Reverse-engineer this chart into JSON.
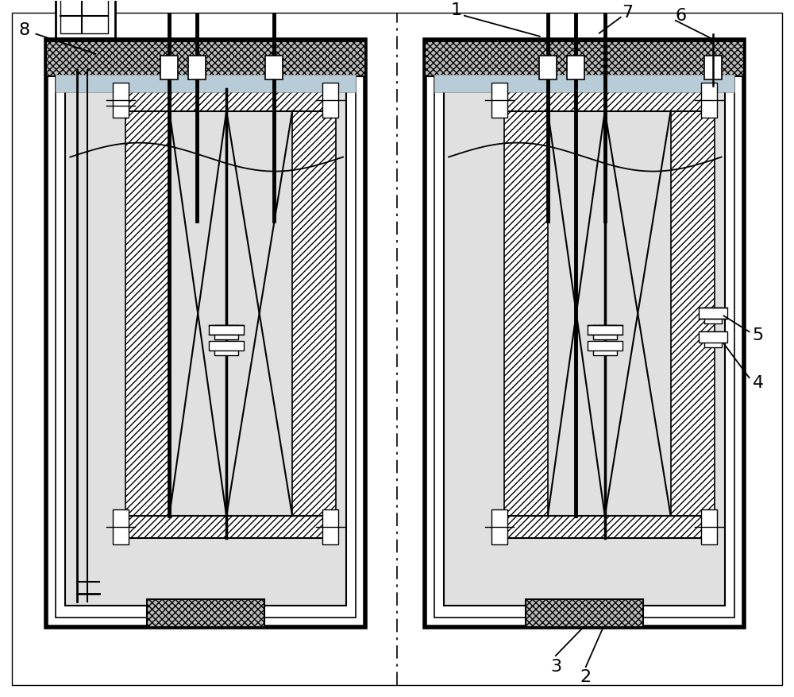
{
  "bg_color": "#ffffff",
  "light_gray": "#e0e0e0",
  "light_blue": "#b8ccd8",
  "hatch_gray": "#bbbbbb",
  "figsize": [
    10.0,
    8.77
  ],
  "dpi": 100
}
